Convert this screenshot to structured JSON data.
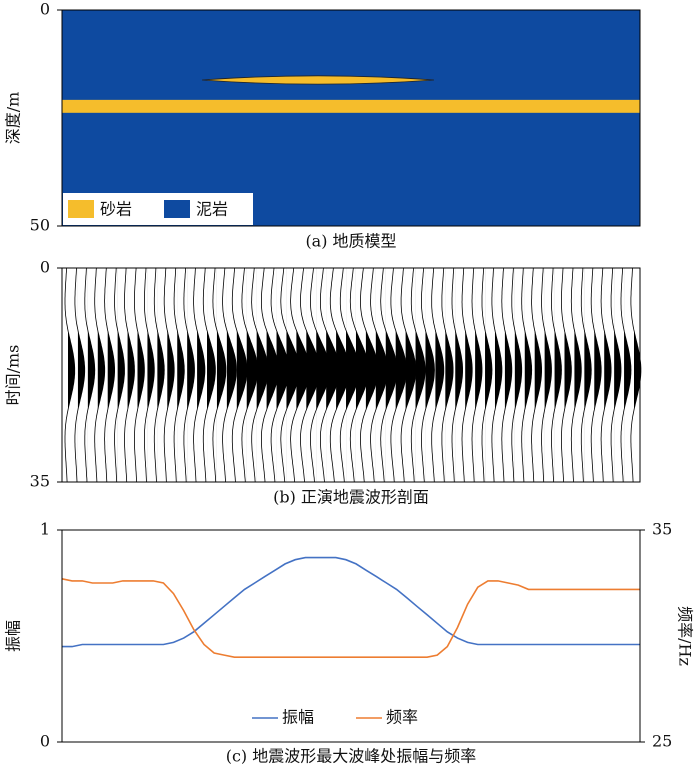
{
  "chart_data": [
    {
      "type": "model",
      "title": "(a) 地质模型",
      "ylabel": "深度/m",
      "ylim": [
        0,
        50
      ],
      "yticks": [
        0,
        50
      ],
      "sand_layer": [
        20.8,
        23.8
      ],
      "sand_lens": [
        15.2,
        17.2
      ],
      "series": [
        {
          "name": "砂岩",
          "color": "#f5bd2c"
        },
        {
          "name": "泥岩",
          "color": "#0e4aa0"
        }
      ]
    },
    {
      "type": "wiggle",
      "title": "(b) 正演地震波形剖面",
      "ylabel": "时间/ms",
      "ylim": [
        0,
        35
      ],
      "yticks": [
        0,
        35
      ]
    },
    {
      "type": "line",
      "title": "(c) 地震波形最大波峰处振幅与频率",
      "ylabel": "振幅",
      "y2label": "频率/Hz",
      "ylim": [
        0,
        1
      ],
      "yticks": [
        0,
        1
      ],
      "y2lim": [
        25,
        35
      ],
      "y2ticks": [
        25,
        35
      ],
      "series": [
        {
          "name": "振幅",
          "color": "#4472c4",
          "values": [
            0.45,
            0.45,
            0.46,
            0.46,
            0.46,
            0.46,
            0.46,
            0.46,
            0.46,
            0.46,
            0.46,
            0.47,
            0.49,
            0.52,
            0.56,
            0.6,
            0.64,
            0.68,
            0.72,
            0.75,
            0.78,
            0.81,
            0.84,
            0.86,
            0.87,
            0.87,
            0.87,
            0.87,
            0.86,
            0.84,
            0.81,
            0.78,
            0.75,
            0.72,
            0.68,
            0.64,
            0.6,
            0.56,
            0.52,
            0.49,
            0.47,
            0.46,
            0.46,
            0.46,
            0.46,
            0.46,
            0.46,
            0.46,
            0.46,
            0.46,
            0.46,
            0.46,
            0.46,
            0.46,
            0.46,
            0.46,
            0.46,
            0.46
          ]
        },
        {
          "name": "频率",
          "color": "#ed7d31",
          "axis": "y2",
          "values": [
            32.7,
            32.6,
            32.6,
            32.5,
            32.5,
            32.5,
            32.6,
            32.6,
            32.6,
            32.6,
            32.5,
            32.0,
            31.2,
            30.3,
            29.6,
            29.2,
            29.1,
            29.0,
            29.0,
            29.0,
            29.0,
            29.0,
            29.0,
            29.0,
            29.0,
            29.0,
            29.0,
            29.0,
            29.0,
            29.0,
            29.0,
            29.0,
            29.0,
            29.0,
            29.0,
            29.0,
            29.0,
            29.1,
            29.5,
            30.4,
            31.5,
            32.3,
            32.6,
            32.6,
            32.5,
            32.4,
            32.2,
            32.2,
            32.2,
            32.2,
            32.2,
            32.2,
            32.2,
            32.2,
            32.2,
            32.2,
            32.2,
            32.2
          ]
        }
      ]
    }
  ]
}
